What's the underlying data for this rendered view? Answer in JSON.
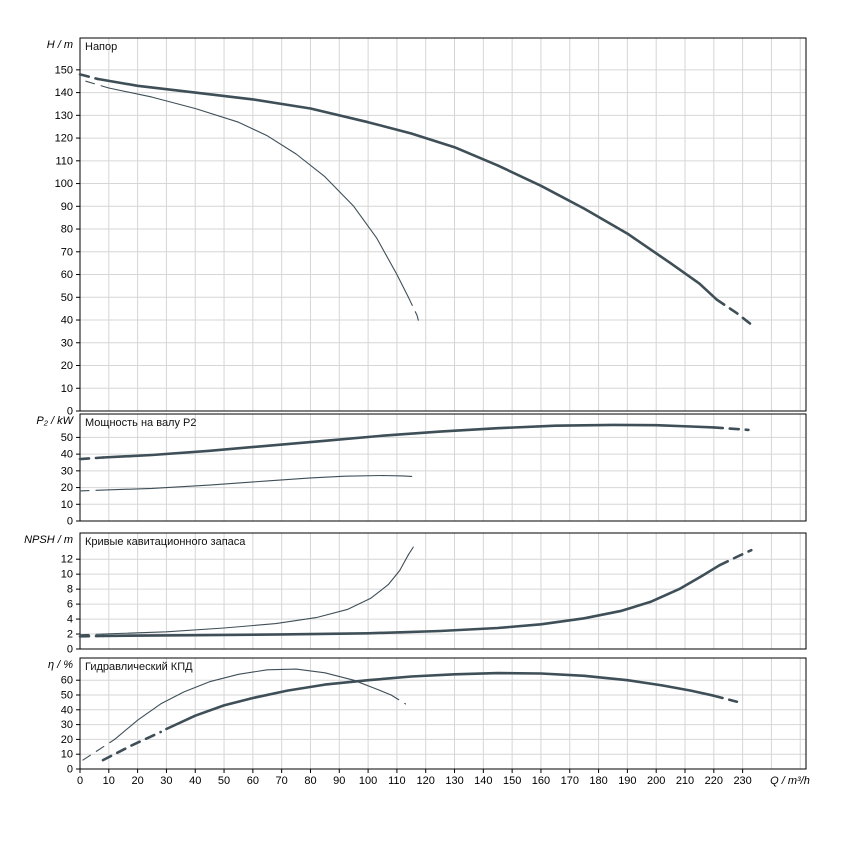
{
  "colors": {
    "curve": "#3f4f58",
    "grid": "#d6d6d6",
    "axis": "#000000",
    "background": "#ffffff"
  },
  "axis": {
    "x_label": "Q / m³/h",
    "x_ticks": [
      0,
      10,
      20,
      30,
      40,
      50,
      60,
      70,
      80,
      90,
      100,
      110,
      120,
      130,
      140,
      150,
      160,
      170,
      180,
      190,
      200,
      210,
      220,
      230
    ],
    "x_max_units": 252
  },
  "chart_data": [
    {
      "type": "line",
      "id": "head",
      "title": "Напор",
      "ylabel": "H / m",
      "ylim": [
        0,
        164
      ],
      "yticks": [
        0,
        10,
        20,
        30,
        40,
        50,
        60,
        70,
        80,
        90,
        100,
        110,
        120,
        130,
        140,
        150
      ],
      "series": [
        {
          "name": "head-primary",
          "weight": "thick",
          "segments": [
            {
              "dash": true,
              "points": [
                [
                  0,
                  148
                ],
                [
                  6,
                  146
                ]
              ]
            },
            {
              "dash": false,
              "points": [
                [
                  6,
                  146
                ],
                [
                  20,
                  143
                ],
                [
                  40,
                  140
                ],
                [
                  60,
                  137
                ],
                [
                  80,
                  133
                ],
                [
                  100,
                  127
                ],
                [
                  115,
                  122
                ],
                [
                  130,
                  116
                ],
                [
                  145,
                  108
                ],
                [
                  160,
                  99
                ],
                [
                  175,
                  89
                ],
                [
                  190,
                  78
                ],
                [
                  205,
                  65
                ],
                [
                  215,
                  56
                ],
                [
                  221,
                  49
                ]
              ]
            },
            {
              "dash": true,
              "points": [
                [
                  221,
                  49
                ],
                [
                  228,
                  43
                ],
                [
                  234,
                  37
                ]
              ]
            }
          ]
        },
        {
          "name": "head-secondary",
          "weight": "thin",
          "segments": [
            {
              "dash": true,
              "points": [
                [
                  2,
                  145
                ],
                [
                  10,
                  142
                ]
              ]
            },
            {
              "dash": false,
              "points": [
                [
                  10,
                  142
                ],
                [
                  25,
                  138
                ],
                [
                  40,
                  133
                ],
                [
                  55,
                  127
                ],
                [
                  65,
                  121
                ],
                [
                  75,
                  113
                ],
                [
                  85,
                  103
                ],
                [
                  95,
                  90
                ],
                [
                  103,
                  76
                ],
                [
                  110,
                  60
                ],
                [
                  114,
                  50
                ]
              ]
            },
            {
              "dash": true,
              "points": [
                [
                  114,
                  50
                ],
                [
                  117,
                  42
                ],
                [
                  118,
                  37
                ]
              ]
            }
          ]
        }
      ]
    },
    {
      "type": "line",
      "id": "power",
      "title": "Мощность на валу P2",
      "ylabel": "P₂ / kW",
      "ylim": [
        0,
        64
      ],
      "yticks": [
        0,
        10,
        20,
        30,
        40,
        50
      ],
      "series": [
        {
          "name": "power-primary",
          "weight": "thick",
          "segments": [
            {
              "dash": true,
              "points": [
                [
                  0,
                  37
                ],
                [
                  8,
                  38
                ]
              ]
            },
            {
              "dash": false,
              "points": [
                [
                  8,
                  38
                ],
                [
                  25,
                  39.5
                ],
                [
                  45,
                  42
                ],
                [
                  65,
                  45
                ],
                [
                  85,
                  48
                ],
                [
                  105,
                  51
                ],
                [
                  125,
                  53.5
                ],
                [
                  145,
                  55.5
                ],
                [
                  165,
                  57
                ],
                [
                  185,
                  57.5
                ],
                [
                  200,
                  57.3
                ],
                [
                  212,
                  56.5
                ],
                [
                  220,
                  56
                ]
              ]
            },
            {
              "dash": true,
              "points": [
                [
                  220,
                  56
                ],
                [
                  232,
                  54.5
                ]
              ]
            }
          ]
        },
        {
          "name": "power-secondary",
          "weight": "thin",
          "segments": [
            {
              "dash": true,
              "points": [
                [
                  0,
                  18
                ],
                [
                  8,
                  18.5
                ]
              ]
            },
            {
              "dash": false,
              "points": [
                [
                  8,
                  18.5
                ],
                [
                  25,
                  19.5
                ],
                [
                  45,
                  21.5
                ],
                [
                  65,
                  24
                ],
                [
                  80,
                  25.8
                ],
                [
                  92,
                  26.8
                ],
                [
                  105,
                  27.2
                ],
                [
                  112,
                  27
                ]
              ]
            },
            {
              "dash": true,
              "points": [
                [
                  112,
                  27
                ],
                [
                  117,
                  26.5
                ]
              ]
            }
          ]
        }
      ]
    },
    {
      "type": "line",
      "id": "npsh",
      "title": "Кривые кавитационного запаса",
      "ylabel": "NPSH / m",
      "ylim": [
        0,
        15.5
      ],
      "yticks": [
        0,
        2,
        4,
        6,
        8,
        10,
        12
      ],
      "series": [
        {
          "name": "npsh-primary",
          "weight": "thick",
          "segments": [
            {
              "dash": true,
              "points": [
                [
                  0,
                  1.7
                ],
                [
                  8,
                  1.75
                ]
              ]
            },
            {
              "dash": false,
              "points": [
                [
                  8,
                  1.75
                ],
                [
                  40,
                  1.85
                ],
                [
                  70,
                  1.95
                ],
                [
                  100,
                  2.1
                ],
                [
                  125,
                  2.4
                ],
                [
                  145,
                  2.8
                ],
                [
                  160,
                  3.3
                ],
                [
                  175,
                  4.1
                ],
                [
                  188,
                  5.1
                ],
                [
                  198,
                  6.3
                ],
                [
                  208,
                  8
                ],
                [
                  216,
                  9.8
                ],
                [
                  222,
                  11.2
                ]
              ]
            },
            {
              "dash": true,
              "points": [
                [
                  222,
                  11.2
                ],
                [
                  229,
                  12.5
                ],
                [
                  233,
                  13.2
                ]
              ]
            }
          ]
        },
        {
          "name": "npsh-secondary",
          "weight": "thin",
          "segments": [
            {
              "dash": true,
              "points": [
                [
                  0,
                  1.9
                ],
                [
                  8,
                  2
                ]
              ]
            },
            {
              "dash": false,
              "points": [
                [
                  8,
                  2
                ],
                [
                  30,
                  2.3
                ],
                [
                  50,
                  2.8
                ],
                [
                  68,
                  3.4
                ],
                [
                  82,
                  4.2
                ],
                [
                  93,
                  5.3
                ],
                [
                  101,
                  6.8
                ],
                [
                  107,
                  8.6
                ],
                [
                  111,
                  10.5
                ],
                [
                  114,
                  12.6
                ]
              ]
            },
            {
              "dash": true,
              "points": [
                [
                  114,
                  12.6
                ],
                [
                  116,
                  13.8
                ]
              ]
            }
          ]
        }
      ]
    },
    {
      "type": "line",
      "id": "efficiency",
      "title": "Гидравлический КПД",
      "ylabel": "η / %",
      "ylim": [
        0,
        75
      ],
      "yticks": [
        0,
        10,
        20,
        30,
        40,
        50,
        60
      ],
      "series": [
        {
          "name": "efficiency-primary",
          "weight": "thick",
          "segments": [
            {
              "dash": true,
              "points": [
                [
                  8,
                  6
                ],
                [
                  18,
                  16
                ],
                [
                  28,
                  25
                ]
              ]
            },
            {
              "dash": false,
              "points": [
                [
                  30,
                  27
                ],
                [
                  40,
                  36
                ],
                [
                  50,
                  43
                ],
                [
                  60,
                  48
                ],
                [
                  72,
                  53
                ],
                [
                  85,
                  57
                ],
                [
                  100,
                  60
                ],
                [
                  115,
                  62.5
                ],
                [
                  130,
                  64
                ],
                [
                  145,
                  64.8
                ],
                [
                  160,
                  64.5
                ],
                [
                  175,
                  63
                ],
                [
                  190,
                  60
                ],
                [
                  202,
                  56.5
                ],
                [
                  212,
                  53
                ],
                [
                  220,
                  49.5
                ]
              ]
            },
            {
              "dash": true,
              "points": [
                [
                  220,
                  49.5
                ],
                [
                  228,
                  45.5
                ]
              ]
            }
          ]
        },
        {
          "name": "efficiency-secondary",
          "weight": "thin",
          "segments": [
            {
              "dash": true,
              "points": [
                [
                  1,
                  6
                ],
                [
                  12,
                  20
                ]
              ]
            },
            {
              "dash": false,
              "points": [
                [
                  12,
                  20
                ],
                [
                  20,
                  33
                ],
                [
                  28,
                  44
                ],
                [
                  36,
                  52
                ],
                [
                  45,
                  59
                ],
                [
                  55,
                  64
                ],
                [
                  65,
                  67
                ],
                [
                  75,
                  67.5
                ],
                [
                  85,
                  65
                ],
                [
                  95,
                  60
                ],
                [
                  103,
                  54
                ],
                [
                  108,
                  50
                ]
              ]
            },
            {
              "dash": true,
              "points": [
                [
                  108,
                  50
                ],
                [
                  113,
                  44
                ]
              ]
            }
          ]
        }
      ]
    }
  ]
}
